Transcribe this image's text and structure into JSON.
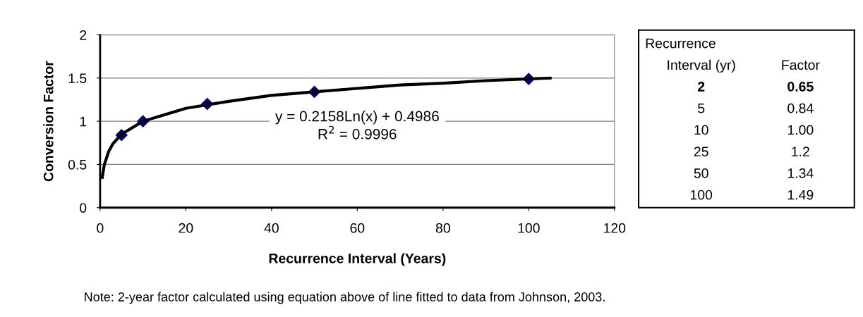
{
  "chart_data": [
    {
      "type": "scatter",
      "xlabel": "Recurrence Interval (Years)",
      "ylabel": "Conversion Factor",
      "xlim": [
        0,
        120
      ],
      "xticks": [
        0,
        20,
        40,
        60,
        80,
        100,
        120
      ],
      "ylim": [
        0,
        2
      ],
      "yticks": [
        0,
        0.5,
        1,
        1.5,
        2
      ],
      "grid": "y",
      "marker": "diamond",
      "series": [
        {
          "type": "scatter",
          "color": "#000080",
          "x": [
            5,
            10,
            25,
            50,
            100
          ],
          "values": [
            0.84,
            1.0,
            1.2,
            1.34,
            1.49
          ]
        },
        {
          "type": "line",
          "color": "#000000",
          "marker": "none",
          "line_style": "solid",
          "x": [
            0.5,
            1,
            2,
            3,
            5,
            10,
            20,
            30,
            40,
            50,
            60,
            70,
            80,
            90,
            100,
            105
          ],
          "values": [
            0.35,
            0.5,
            0.65,
            0.74,
            0.85,
            1.0,
            1.15,
            1.23,
            1.3,
            1.34,
            1.38,
            1.42,
            1.44,
            1.47,
            1.49,
            1.5
          ]
        }
      ],
      "annotations": [
        "y = 0.2158Ln(x) + 0.4986",
        "R$^{2}$ = 0.9996",
        "Note: 2-year factor calculated using equation above of line fitted to data from Johnson, 2003."
      ]
    },
    {
      "type": "other",
      "title": "Recurrence",
      "xlabel": "Interval (yr)",
      "ylabel": "Factor",
      "categories": [
        "2",
        "5",
        "10",
        "25",
        "50",
        "100"
      ],
      "value_labels": [
        "0.65",
        "0.84",
        "1.00",
        "1.2",
        "1.34",
        "1.49"
      ]
    }
  ]
}
